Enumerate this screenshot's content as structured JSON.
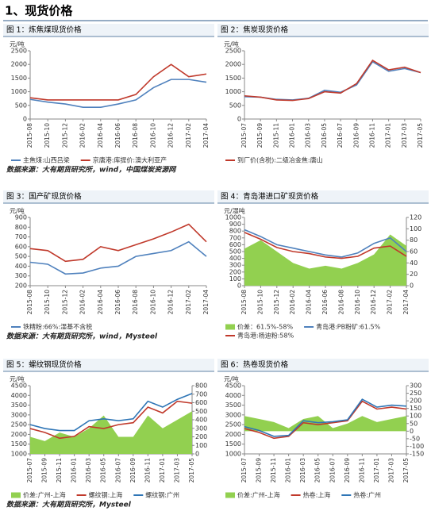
{
  "title": "1、现货价格",
  "sources": [
    "数据来源：大有期货研究所，wind，中国煤炭资源网",
    "数据来源：大有期货研究所，wind，Mysteel",
    "数据来源：大有期货研究所，Mysteel"
  ],
  "chart_data": [
    {
      "type": "line",
      "title": "图 1：炼焦煤现货价格",
      "unit": "元/吨",
      "categories": [
        "2015-08",
        "2015-10",
        "2015-12",
        "2016-02",
        "2016-04",
        "2016-06",
        "2016-08",
        "2016-10",
        "2016-12",
        "2017-02",
        "2017-04"
      ],
      "ylim": [
        0,
        2500
      ],
      "yticks": [
        0,
        500,
        1000,
        1500,
        2000,
        2500
      ],
      "series": [
        {
          "name": "主焦煤:山西吕梁",
          "color": "#4f81bd",
          "values": [
            720,
            620,
            550,
            430,
            430,
            550,
            700,
            1150,
            1450,
            1450,
            1350
          ]
        },
        {
          "name": "京唐港:库提价:澳大利亚产",
          "color": "#c0392b",
          "values": [
            780,
            700,
            700,
            700,
            700,
            700,
            900,
            1550,
            2000,
            1550,
            1650
          ]
        }
      ]
    },
    {
      "type": "line",
      "title": "图 2：焦炭现货价格",
      "unit": "元/吨",
      "categories": [
        "2015-07",
        "2015-09",
        "2015-11",
        "2016-01",
        "2016-03",
        "2016-05",
        "2016-07",
        "2016-09",
        "2016-11",
        "2017-01",
        "2017-03",
        "2017-05"
      ],
      "ylim": [
        0,
        2500
      ],
      "yticks": [
        0,
        500,
        1000,
        1500,
        2000,
        2500
      ],
      "series": [
        {
          "color": "#4f81bd",
          "values": [
            820,
            800,
            720,
            700,
            760,
            1050,
            980,
            1250,
            2100,
            1750,
            1850,
            1700
          ]
        },
        {
          "name": "到厂价(含税):二级冶金焦:唐山",
          "color": "#c0392b",
          "values": [
            850,
            800,
            700,
            680,
            750,
            1000,
            950,
            1300,
            2150,
            1800,
            1900,
            1700
          ]
        }
      ]
    },
    {
      "type": "line",
      "title": "图 3：国产矿现货价格",
      "unit": "元/吨",
      "categories": [
        "2015-08",
        "2015-10",
        "2015-12",
        "2016-02",
        "2016-04",
        "2016-06",
        "2016-08",
        "2016-10",
        "2016-12",
        "2017-02",
        "2017-04"
      ],
      "ylim": [
        200,
        900
      ],
      "yticks": [
        200,
        300,
        400,
        500,
        600,
        700,
        800,
        900
      ],
      "series": [
        {
          "name": "铁精粉:66%:湿基不含税",
          "color": "#4f81bd",
          "values": [
            440,
            420,
            320,
            330,
            380,
            400,
            500,
            530,
            560,
            650,
            500
          ]
        },
        {
          "color": "#c0392b",
          "values": [
            580,
            560,
            450,
            470,
            600,
            560,
            620,
            680,
            750,
            830,
            650
          ]
        }
      ]
    },
    {
      "type": "line",
      "title": "图 4：青岛港进口矿现货价格",
      "unit": "元/湿吨",
      "categories": [
        "2015-08",
        "2015-10",
        "2015-12",
        "2016-02",
        "2016-04",
        "2016-06",
        "2016-08",
        "2016-10",
        "2016-12",
        "2017-02",
        "2017-04"
      ],
      "ylim": [
        0,
        1000
      ],
      "yticks": [
        0,
        100,
        200,
        300,
        400,
        500,
        600,
        700,
        800,
        900,
        1000
      ],
      "y2lim": [
        0,
        120
      ],
      "y2ticks": [
        0,
        20,
        40,
        60,
        80,
        100,
        120
      ],
      "series": [
        {
          "name": "价差：61.5%-58%",
          "type": "area",
          "axis": "y2",
          "color": "#92d050",
          "values": [
            65,
            80,
            60,
            40,
            30,
            35,
            30,
            40,
            55,
            90,
            70
          ]
        },
        {
          "name": "青岛港:PB粉矿:61.5%",
          "color": "#4f81bd",
          "values": [
            820,
            720,
            600,
            550,
            500,
            450,
            420,
            480,
            620,
            700,
            500
          ]
        },
        {
          "name": "青岛港:杨迪粉:58%",
          "color": "#c0392b",
          "values": [
            780,
            680,
            560,
            500,
            470,
            420,
            400,
            430,
            550,
            580,
            430
          ]
        }
      ]
    },
    {
      "type": "line",
      "title": "图 5：螺纹钢现货价格",
      "unit": "元/吨",
      "categories": [
        "2015-07",
        "2015-09",
        "2015-11",
        "2016-01",
        "2016-03",
        "2016-05",
        "2016-07",
        "2016-09",
        "2016-11",
        "2017-01",
        "2017-03",
        "2017-05"
      ],
      "ylim": [
        1000,
        4500
      ],
      "yticks": [
        1000,
        1500,
        2000,
        2500,
        3000,
        3500,
        4000,
        4500
      ],
      "y2lim": [
        0,
        800
      ],
      "y2ticks": [
        0,
        100,
        200,
        300,
        400,
        500,
        600,
        700,
        800
      ],
      "series": [
        {
          "name": "价差:广州-上海",
          "type": "area",
          "axis": "y2",
          "color": "#92d050",
          "values": [
            200,
            150,
            250,
            200,
            300,
            450,
            200,
            200,
            450,
            300,
            400,
            500
          ]
        },
        {
          "name": "螺纹钢:上海",
          "color": "#c0392b",
          "values": [
            2300,
            2100,
            1800,
            1900,
            2400,
            2300,
            2500,
            2600,
            3400,
            3100,
            3700,
            3600
          ]
        },
        {
          "name": "螺纹钢:广州",
          "color": "#2e75b6",
          "values": [
            2500,
            2300,
            2200,
            2200,
            2700,
            2800,
            2700,
            2800,
            3700,
            3400,
            3800,
            4100
          ]
        }
      ]
    },
    {
      "type": "line",
      "title": "图 6：热卷现货价格",
      "unit": "元/吨",
      "categories": [
        "2015-07",
        "2015-09",
        "2015-11",
        "2016-01",
        "2016-03",
        "2016-05",
        "2016-07",
        "2016-09",
        "2016-11",
        "2017-01",
        "2017-03",
        "2017-05"
      ],
      "ylim": [
        1000,
        4500
      ],
      "yticks": [
        1000,
        1500,
        2000,
        2500,
        3000,
        3500,
        4000,
        4500
      ],
      "y2lim": [
        -150,
        300
      ],
      "y2ticks": [
        -150,
        -100,
        -50,
        0,
        50,
        100,
        150,
        200,
        250,
        300
      ],
      "series": [
        {
          "name": "价差:广州-上海",
          "type": "area",
          "axis": "y2",
          "color": "#92d050",
          "values": [
            100,
            80,
            60,
            20,
            80,
            100,
            20,
            50,
            100,
            60,
            80,
            100
          ]
        },
        {
          "name": "热卷:上海",
          "color": "#c0392b",
          "values": [
            2300,
            2100,
            1800,
            1900,
            2600,
            2500,
            2600,
            2700,
            3700,
            3300,
            3400,
            3300
          ]
        },
        {
          "name": "热卷:广州",
          "color": "#2e75b6",
          "values": [
            2400,
            2200,
            1900,
            1950,
            2700,
            2600,
            2650,
            2750,
            3800,
            3400,
            3500,
            3450
          ]
        }
      ]
    }
  ]
}
